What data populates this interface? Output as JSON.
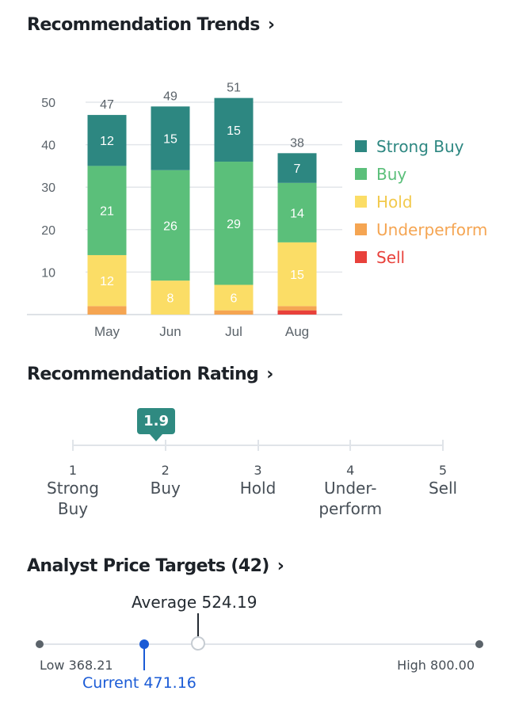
{
  "trends": {
    "title": "Recommendation Trends",
    "chevron": "›"
  },
  "chart_data": {
    "type": "bar",
    "stacked": true,
    "categories": [
      "May",
      "Jun",
      "Jul",
      "Aug"
    ],
    "totals": [
      47,
      49,
      51,
      38
    ],
    "ylim": [
      0,
      50
    ],
    "yticks": [
      10,
      20,
      30,
      40,
      50
    ],
    "grid": true,
    "legend_position": "right",
    "series": [
      {
        "name": "Sell",
        "color": "#e8413b",
        "values": [
          0,
          0,
          0,
          1
        ],
        "show_labels": false
      },
      {
        "name": "Underperform",
        "color": "#f5a552",
        "values": [
          2,
          0,
          1,
          1
        ],
        "show_labels": false
      },
      {
        "name": "Hold",
        "color": "#fbdd66",
        "values": [
          12,
          8,
          6,
          15
        ],
        "show_labels": true
      },
      {
        "name": "Buy",
        "color": "#5bbf7a",
        "values": [
          21,
          26,
          29,
          14
        ],
        "show_labels": true
      },
      {
        "name": "Strong Buy",
        "color": "#2d8781",
        "values": [
          12,
          15,
          15,
          7
        ],
        "show_labels": true
      }
    ]
  },
  "legend": [
    {
      "label": "Strong Buy",
      "color": "#2d8781"
    },
    {
      "label": "Buy",
      "color": "#5bbf7a"
    },
    {
      "label": "Hold",
      "color": "#fbdd66"
    },
    {
      "label": "Underperform",
      "color": "#f5a552"
    },
    {
      "label": "Sell",
      "color": "#e8413b"
    }
  ],
  "rating": {
    "title": "Recommendation Rating",
    "chevron": "›",
    "value": "1.9",
    "value_numeric": 1.9,
    "scale_min": 1,
    "scale_max": 5,
    "scale": [
      {
        "num": "1",
        "line1": "Strong",
        "line2": "Buy"
      },
      {
        "num": "2",
        "line1": "Buy",
        "line2": ""
      },
      {
        "num": "3",
        "line1": "Hold",
        "line2": ""
      },
      {
        "num": "4",
        "line1": "Under-",
        "line2": "perform"
      },
      {
        "num": "5",
        "line1": "Sell",
        "line2": ""
      }
    ]
  },
  "targets": {
    "title": "Analyst Price Targets (42)",
    "chevron": "›",
    "average_label": "Average 524.19",
    "low_label": "Low 368.21",
    "high_label": "High 800.00",
    "current_label": "Current 471.16",
    "low": 368.21,
    "high": 800.0,
    "average": 524.19,
    "current": 471.16,
    "colors": {
      "current": "#1a5bd6",
      "track": "#e0e4e9"
    }
  }
}
